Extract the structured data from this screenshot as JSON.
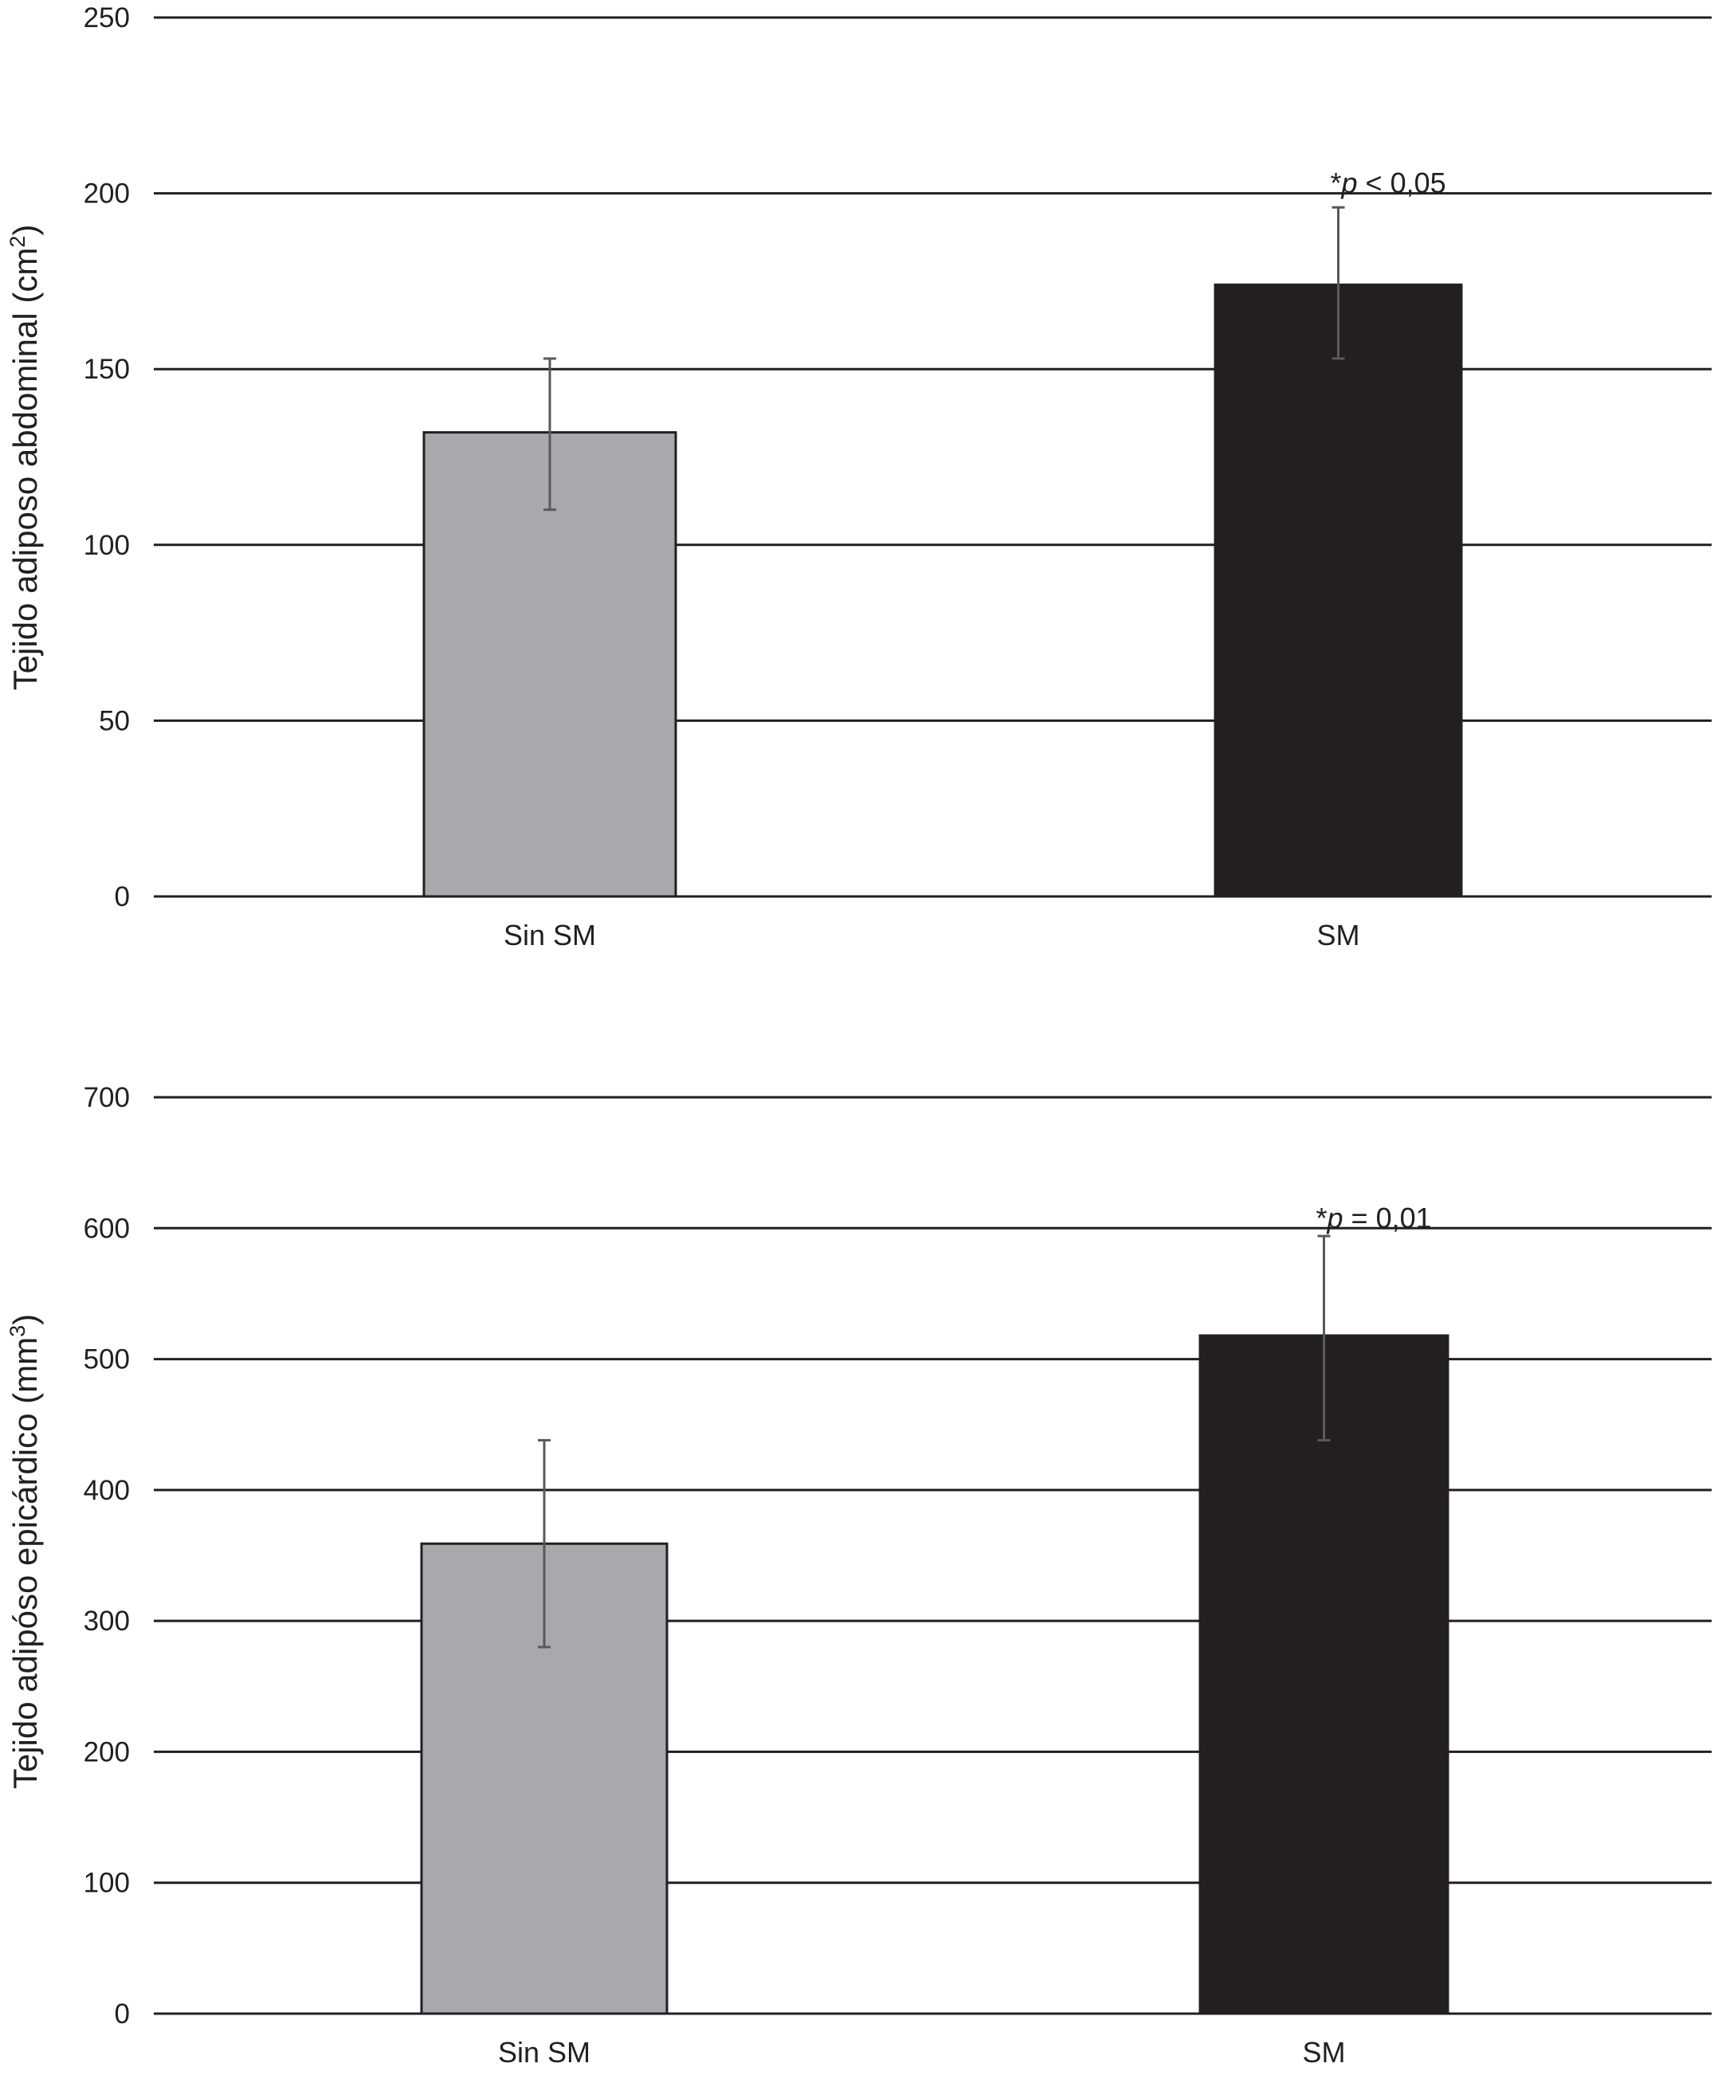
{
  "chart_data": [
    {
      "type": "bar",
      "categories": [
        "Sin SM",
        "SM"
      ],
      "values": [
        132,
        174
      ],
      "errors": [
        {
          "low": 110,
          "high": 153
        },
        {
          "low": 153,
          "high": 196
        }
      ],
      "colors": [
        "#a7a9ac",
        "#231f20"
      ],
      "ylabel": {
        "text": "Tejido adiposo abdominal (cm",
        "sup": "2",
        "close": ")"
      },
      "ylim": [
        0,
        250
      ],
      "yticks": [
        0,
        50,
        100,
        150,
        200,
        250
      ],
      "grid": true,
      "annotation": {
        "star": "*",
        "p": "p",
        "rest": " < 0,05"
      }
    },
    {
      "type": "bar",
      "categories": [
        "Sin SM",
        "SM"
      ],
      "values": [
        359,
        518
      ],
      "errors": [
        {
          "low": 280,
          "high": 438
        },
        {
          "low": 438,
          "high": 594
        }
      ],
      "colors": [
        "#a7a9ac",
        "#231f20"
      ],
      "ylabel": {
        "text": "Tejido adipóso epicárdico (mm",
        "sup": "3",
        "close": ")"
      },
      "ylim": [
        0,
        700
      ],
      "yticks": [
        0,
        100,
        200,
        300,
        400,
        500,
        600,
        700
      ],
      "grid": true,
      "annotation": {
        "star": "*",
        "p": "p",
        "rest": " = 0,01"
      }
    }
  ]
}
